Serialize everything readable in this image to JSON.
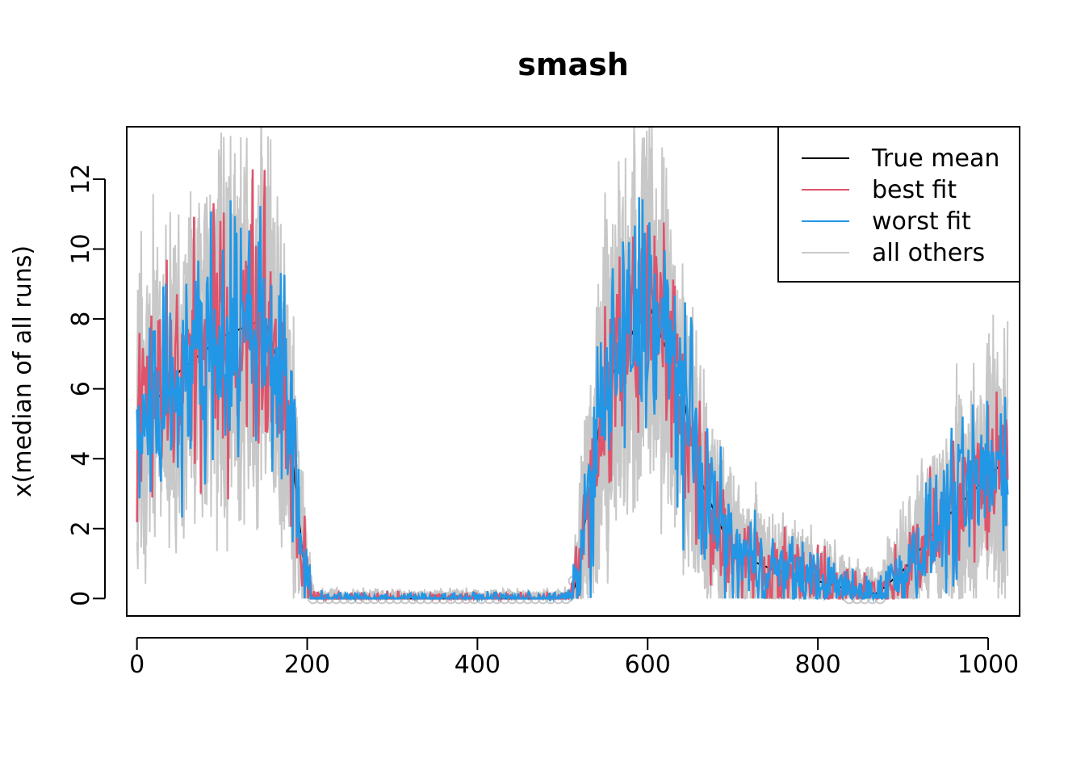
{
  "chart_data": {
    "type": "line",
    "title": "smash",
    "xlabel": "",
    "ylabel": "x(median of all runs)",
    "xlim": [
      -12,
      1037
    ],
    "ylim": [
      -0.5,
      13.5
    ],
    "xticks": [
      0,
      200,
      400,
      600,
      800,
      1000
    ],
    "yticks": [
      0,
      2,
      4,
      6,
      8,
      10,
      12
    ],
    "grid": false,
    "legend_position": "top-right",
    "legend": [
      {
        "label": "True mean",
        "color": "#000000"
      },
      {
        "label": "best fit",
        "color": "#DF536B"
      },
      {
        "label": "worst fit",
        "color": "#2297E6"
      },
      {
        "label": "all others",
        "color": "#C8C8C8"
      }
    ],
    "series": [
      {
        "name": "True mean",
        "color": "#000000",
        "x": [
          0,
          50,
          100,
          150,
          175,
          185,
          195,
          205,
          210,
          300,
          400,
          500,
          510,
          518,
          525,
          550,
          600,
          640,
          660,
          700,
          750,
          800,
          830,
          850,
          870,
          900,
          950,
          1000,
          1023
        ],
        "y": [
          5.0,
          6.5,
          7.5,
          8.0,
          6.0,
          3.5,
          1.2,
          0.1,
          0.0,
          0.0,
          0.0,
          0.0,
          0.05,
          0.6,
          2.0,
          6.0,
          8.5,
          6.0,
          3.5,
          1.3,
          0.8,
          0.5,
          0.3,
          0.15,
          0.15,
          0.8,
          2.3,
          3.5,
          4.0
        ]
      },
      {
        "name": "best fit",
        "color": "#DF536B",
        "x": [
          0,
          50,
          100,
          150,
          175,
          185,
          195,
          205,
          210,
          300,
          400,
          500,
          510,
          518,
          525,
          550,
          600,
          640,
          660,
          700,
          750,
          800,
          830,
          850,
          870,
          900,
          950,
          1000,
          1023
        ],
        "y": [
          5.0,
          6.5,
          7.5,
          8.0,
          6.0,
          3.5,
          1.2,
          0.1,
          0.0,
          0.0,
          0.0,
          0.0,
          0.05,
          0.6,
          2.0,
          6.0,
          8.5,
          6.0,
          3.5,
          1.3,
          0.8,
          0.5,
          0.3,
          0.15,
          0.15,
          0.8,
          2.3,
          3.5,
          4.0
        ]
      },
      {
        "name": "worst fit",
        "color": "#2297E6",
        "x": [
          0,
          50,
          100,
          150,
          175,
          185,
          195,
          205,
          210,
          300,
          400,
          500,
          510,
          518,
          525,
          550,
          600,
          640,
          660,
          700,
          750,
          800,
          830,
          850,
          870,
          900,
          950,
          1000,
          1023
        ],
        "y": [
          5.0,
          6.5,
          7.5,
          8.0,
          6.0,
          3.5,
          1.2,
          0.1,
          0.0,
          0.0,
          0.0,
          0.0,
          0.05,
          0.6,
          2.0,
          6.0,
          8.5,
          6.0,
          3.5,
          1.3,
          0.8,
          0.5,
          0.3,
          0.15,
          0.15,
          0.8,
          2.3,
          3.5,
          4.0
        ]
      },
      {
        "name": "all others",
        "color": "#C8C8C8",
        "x": [
          0,
          50,
          100,
          150,
          175,
          185,
          195,
          205,
          210,
          300,
          400,
          500,
          510,
          518,
          525,
          550,
          600,
          640,
          660,
          700,
          750,
          800,
          830,
          850,
          870,
          900,
          950,
          1000,
          1023
        ],
        "y": [
          5.0,
          6.5,
          7.5,
          8.0,
          6.0,
          3.5,
          1.2,
          0.1,
          0.0,
          0.0,
          0.0,
          0.0,
          0.05,
          0.6,
          2.0,
          6.0,
          8.5,
          6.0,
          3.5,
          1.3,
          0.8,
          0.5,
          0.3,
          0.15,
          0.15,
          0.8,
          2.3,
          3.5,
          4.0
        ]
      }
    ],
    "noise": {
      "all_others_runs": 6,
      "all_others_scale": 0.55,
      "fit_scale": 0.4
    }
  }
}
